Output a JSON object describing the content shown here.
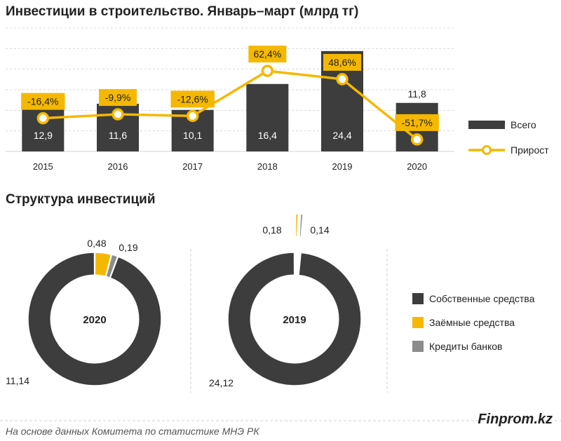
{
  "chart_data": [
    {
      "type": "bar",
      "title": "Инвестиции в строительство. Январь–март (млрд тг)",
      "categories": [
        "2015",
        "2016",
        "2017",
        "2018",
        "2019",
        "2020"
      ],
      "series": [
        {
          "name": "Всего",
          "values": [
            12.9,
            11.6,
            10.1,
            16.4,
            24.4,
            11.8
          ],
          "labels": [
            "12,9",
            "11,6",
            "10,1",
            "16,4",
            "24,4",
            "11,8"
          ],
          "color": "#3d3d3d"
        },
        {
          "name": "Прирост",
          "type": "line",
          "values": [
            -16.4,
            -9.9,
            -12.6,
            62.4,
            48.6,
            -51.7
          ],
          "labels": [
            "-16,4%",
            "-9,9%",
            "-12,6%",
            "62,4%",
            "48,6%",
            "-51,7%"
          ],
          "color": "#f5b800"
        }
      ],
      "ylim": [
        0,
        30
      ],
      "growth_ylim": [
        -60,
        80
      ],
      "legend": [
        "Всего",
        "Прирост"
      ],
      "legend_position": "right"
    },
    {
      "type": "pie",
      "title": "Структура инвестиций",
      "donuts": [
        {
          "center_label": "2020",
          "slices": [
            {
              "name": "Собственные средства",
              "value": 11.14,
              "label": "11,14"
            },
            {
              "name": "Заёмные средства",
              "value": 0.48,
              "label": "0,48"
            },
            {
              "name": "Кредиты банков",
              "value": 0.19,
              "label": "0,19"
            }
          ]
        },
        {
          "center_label": "2019",
          "slices": [
            {
              "name": "Собственные средства",
              "value": 24.12,
              "label": "24,12"
            },
            {
              "name": "Заёмные средства",
              "value": 0.18,
              "label": "0,18"
            },
            {
              "name": "Кредиты банков",
              "value": 0.14,
              "label": "0,14"
            }
          ]
        }
      ],
      "legend": [
        {
          "name": "Собственные средства",
          "color": "#3d3d3d"
        },
        {
          "name": "Заёмные средства",
          "color": "#f5b800"
        },
        {
          "name": "Кредиты банков",
          "color": "#8c8c8c"
        }
      ],
      "legend_position": "right"
    }
  ],
  "footer": {
    "source": "На основе данных Комитета по статистике МНЭ РК",
    "brand": "Finprom.kz"
  },
  "colors": {
    "dark": "#3d3d3d",
    "accent": "#f5b800",
    "gray": "#8c8c8c",
    "grid": "#d9d9d9"
  }
}
